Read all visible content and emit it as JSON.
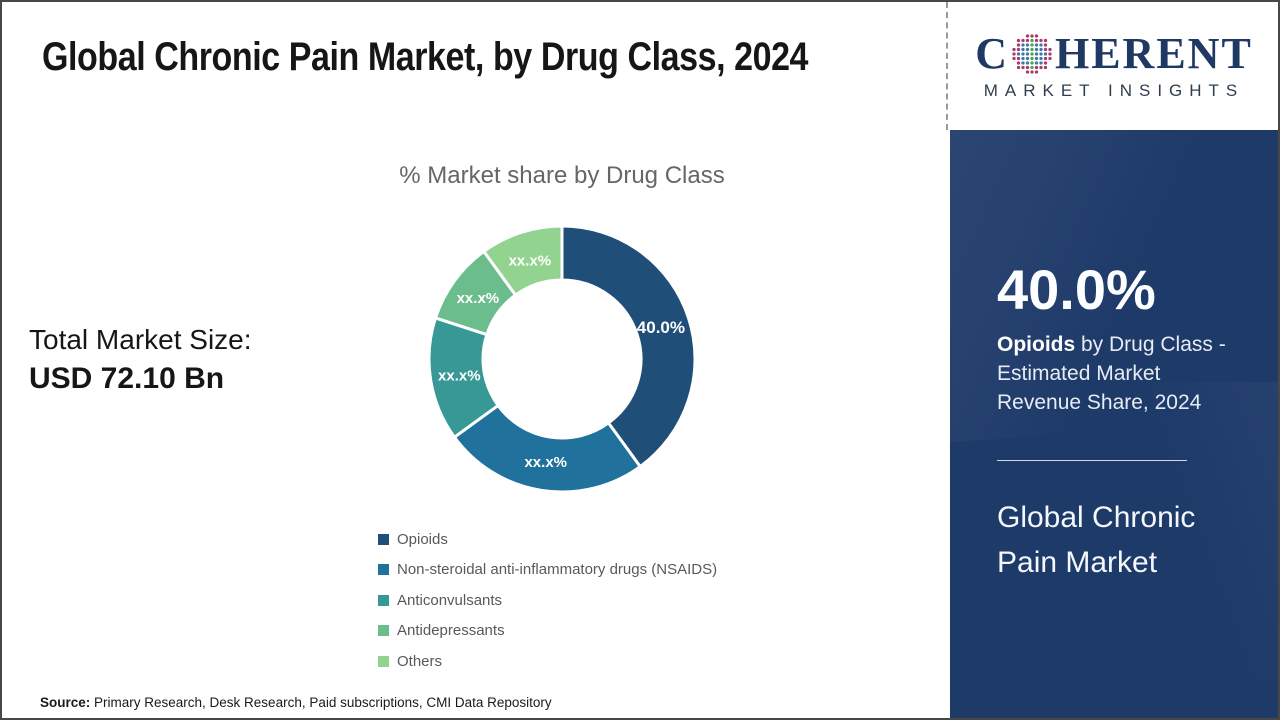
{
  "title": "Global Chronic Pain Market, by Drug Class, 2024",
  "logo": {
    "word_start": "C",
    "word_end": "HERENT",
    "subtext": "MARKET INSIGHTS",
    "navy": "#1F3864",
    "globe_colors": {
      "center": "#4FA04C",
      "mid": "#3C77A8",
      "outer": "#A93A6B"
    }
  },
  "chart_data": {
    "type": "pie",
    "donut": true,
    "title": "% Market share by Drug Class",
    "categories": [
      "Opioids",
      "Non-steroidal anti-inflammatory drugs (NSAIDS)",
      "Anticonvulsants",
      "Antidepressants",
      "Others"
    ],
    "values": [
      40.0,
      25.0,
      15.0,
      10.0,
      10.0
    ],
    "slice_labels": [
      "40.0%",
      "xx.x%",
      "xx.x%",
      "xx.x%",
      "xx.x%"
    ],
    "colors": [
      "#1F4E79",
      "#20719B",
      "#379896",
      "#6CBD8D",
      "#92D48F"
    ],
    "start_angle_deg": 0,
    "direction": "clockwise",
    "outer_radius": 133,
    "inner_radius": 79,
    "label_radius": 104,
    "legend_position": "bottom-left"
  },
  "total_market": {
    "label": "Total Market Size:",
    "value": "USD 72.10 Bn"
  },
  "sidebar": {
    "bg_color": "#1E3A69",
    "stat_value": "40.0%",
    "stat_highlight": "Opioids",
    "stat_rest": " by Drug Class - Estimated Market Revenue Share, 2024",
    "market_name": "Global Chronic Pain Market"
  },
  "footer": {
    "source_label": "Source:",
    "source_text": " Primary Research, Desk Research, Paid subscriptions, CMI Data Repository"
  }
}
